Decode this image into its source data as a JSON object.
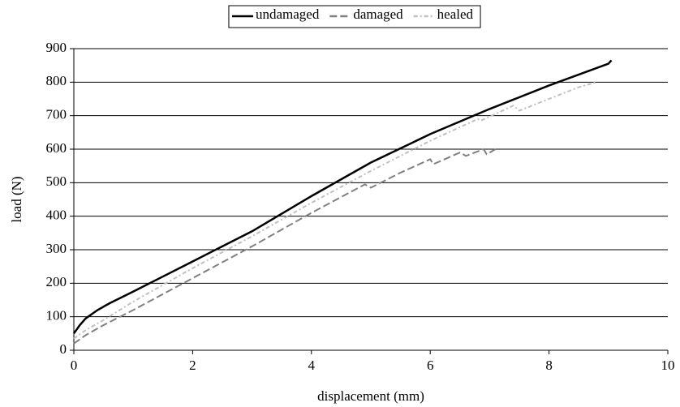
{
  "chart_data": {
    "type": "line",
    "xlabel": "displacement (mm)",
    "ylabel": "load (N)",
    "xlim": [
      0,
      10
    ],
    "xticks": [
      0,
      2,
      4,
      6,
      8,
      10
    ],
    "ylim": [
      0,
      900
    ],
    "yticks": [
      0,
      100,
      200,
      300,
      400,
      500,
      600,
      700,
      800,
      900
    ],
    "grid": true,
    "legend": "top",
    "series": [
      {
        "name": "undamaged",
        "color": "#000000",
        "dash": "solid",
        "x": [
          0,
          0.1,
          0.2,
          0.4,
          0.6,
          1,
          1.5,
          2,
          3,
          4,
          5,
          6,
          7,
          8,
          9,
          9.05
        ],
        "values": [
          50,
          75,
          95,
          120,
          140,
          175,
          220,
          265,
          355,
          460,
          560,
          645,
          720,
          790,
          855,
          865
        ]
      },
      {
        "name": "damaged",
        "color": "#808080",
        "dash": "dashed",
        "x": [
          0,
          0.2,
          0.5,
          1,
          2,
          3,
          4,
          4.9,
          4.95,
          5,
          5.5,
          6,
          6.05,
          6.5,
          6.6,
          6.9,
          6.95,
          7.1
        ],
        "values": [
          20,
          45,
          75,
          120,
          215,
          310,
          410,
          495,
          490,
          485,
          530,
          570,
          555,
          590,
          580,
          600,
          585,
          600
        ]
      },
      {
        "name": "healed",
        "color": "#c0c0c0",
        "dash": "dotted",
        "x": [
          0,
          0.2,
          0.5,
          1,
          2,
          3,
          4,
          5,
          6,
          6.8,
          6.85,
          7.4,
          7.5,
          8,
          8.5,
          8.8
        ],
        "values": [
          35,
          60,
          90,
          145,
          245,
          340,
          440,
          535,
          625,
          690,
          685,
          730,
          715,
          750,
          785,
          800
        ]
      }
    ]
  }
}
